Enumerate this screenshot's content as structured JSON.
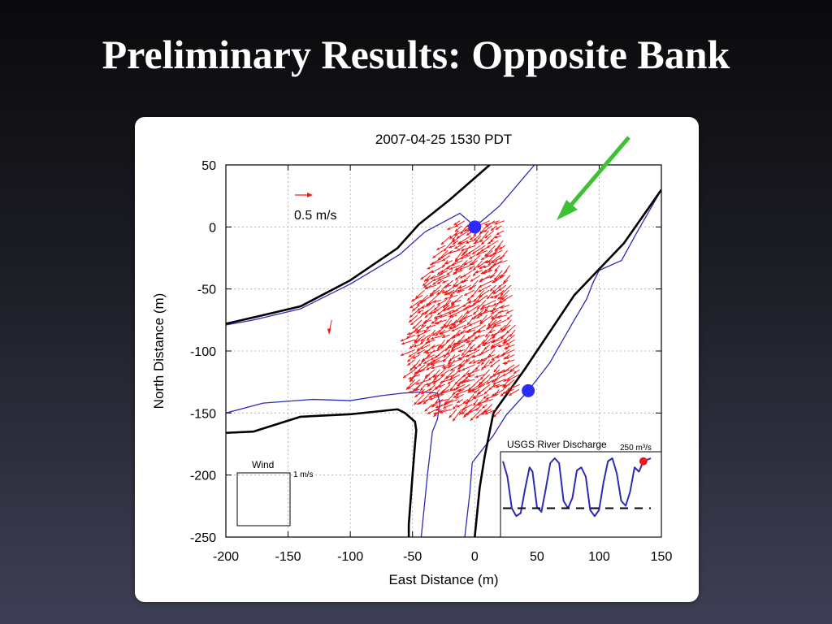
{
  "slide": {
    "title": "Preliminary Results: Opposite Bank"
  },
  "colors": {
    "vectors": "#ee1c1c",
    "coast": "#2b2bb5",
    "banks": "#000000",
    "markers": "#2b2bff",
    "flow_arrow": "#3ec234",
    "current_point": "#e8191f"
  },
  "chart_data": {
    "type": "quiver",
    "title": "2007-04-25 1530 PDT",
    "xlabel": "East Distance (m)",
    "ylabel": "North Distance (m)",
    "xlim": [
      -200,
      150
    ],
    "ylim": [
      -250,
      50
    ],
    "xticks": [
      -200,
      -150,
      -100,
      -50,
      0,
      50,
      100,
      150
    ],
    "yticks": [
      50,
      0,
      -50,
      -100,
      -150,
      -200,
      -250
    ],
    "grid": true,
    "scale_label": "0.5 m/s",
    "wind_label": "Wind",
    "wind_scale_label": "1 m/s",
    "markers": [
      {
        "x": 0,
        "y": 0
      },
      {
        "x": 43,
        "y": -132
      }
    ],
    "outer_bank_left": [
      [
        -200,
        -78
      ],
      [
        -178,
        -73
      ],
      [
        -140,
        -64
      ],
      [
        -100,
        -43
      ],
      [
        -62,
        -17
      ],
      [
        -45,
        2
      ],
      [
        -20,
        22
      ],
      [
        12,
        50
      ]
    ],
    "outer_bank_right_upper": [
      [
        15,
        -150
      ],
      [
        40,
        -115
      ],
      [
        80,
        -55
      ],
      [
        120,
        -13
      ],
      [
        150,
        30
      ]
    ],
    "outer_bank_right_lower": [
      [
        15,
        -150
      ],
      [
        8,
        -185
      ],
      [
        4,
        -210
      ],
      [
        0,
        -250
      ]
    ],
    "outer_bank_bottom": [
      [
        -200,
        -166
      ],
      [
        -178,
        -165
      ],
      [
        -140,
        -153
      ],
      [
        -100,
        -151
      ],
      [
        -62,
        -147
      ],
      [
        -56,
        -150
      ],
      [
        -48,
        -157
      ],
      [
        -47,
        -164
      ],
      [
        -48,
        -175
      ],
      [
        -50,
        -200
      ],
      [
        -53,
        -240
      ],
      [
        -53,
        -250
      ]
    ],
    "waterline_left": [
      [
        -200,
        -79
      ],
      [
        -178,
        -75
      ],
      [
        -140,
        -66
      ],
      [
        -100,
        -46
      ],
      [
        -60,
        -22
      ],
      [
        -40,
        -4
      ],
      [
        -12,
        11
      ],
      [
        -5,
        5
      ],
      [
        -2,
        2
      ]
    ],
    "waterline_top": [
      [
        0,
        0
      ],
      [
        20,
        17
      ],
      [
        48,
        50
      ]
    ],
    "waterline_right": [
      [
        43,
        -132
      ],
      [
        60,
        -110
      ],
      [
        80,
        -75
      ],
      [
        90,
        -58
      ],
      [
        95,
        -45
      ],
      [
        100,
        -35
      ],
      [
        118,
        -27
      ],
      [
        130,
        -5
      ],
      [
        150,
        30
      ]
    ],
    "waterline_bottom": [
      [
        -200,
        -150
      ],
      [
        -170,
        -142
      ],
      [
        -130,
        -139
      ],
      [
        -100,
        -140
      ],
      [
        -75,
        -136
      ],
      [
        -58,
        -134
      ],
      [
        -42,
        -133
      ],
      [
        -30,
        -134
      ],
      [
        -28,
        -142
      ],
      [
        -30,
        -155
      ],
      [
        -34,
        -165
      ],
      [
        -38,
        -200
      ],
      [
        -43,
        -250
      ]
    ],
    "waterline_lower_right": [
      [
        43,
        -132
      ],
      [
        25,
        -152
      ],
      [
        15,
        -168
      ],
      [
        -2,
        -190
      ],
      [
        -4,
        -215
      ],
      [
        -8,
        -250
      ]
    ],
    "vector_field": {
      "region_x": [
        -50,
        38
      ],
      "region_y": [
        -150,
        5
      ],
      "grid_step": 4,
      "direction": "southwest",
      "max_speed_mps": 0.5
    },
    "inset": {
      "title": "USGS River Discharge",
      "max_label": "250 m³/s",
      "series": [
        {
          "t": 0,
          "q": 0.95
        },
        {
          "t": 3,
          "q": 0.7
        },
        {
          "t": 6,
          "q": 0.18
        },
        {
          "t": 9,
          "q": 0.05
        },
        {
          "t": 12,
          "q": 0.1
        },
        {
          "t": 15,
          "q": 0.5
        },
        {
          "t": 18,
          "q": 0.85
        },
        {
          "t": 20,
          "q": 0.78
        },
        {
          "t": 23,
          "q": 0.2
        },
        {
          "t": 26,
          "q": 0.12
        },
        {
          "t": 29,
          "q": 0.5
        },
        {
          "t": 32,
          "q": 0.92
        },
        {
          "t": 35,
          "q": 1.0
        },
        {
          "t": 38,
          "q": 0.92
        },
        {
          "t": 41,
          "q": 0.3
        },
        {
          "t": 44,
          "q": 0.18
        },
        {
          "t": 47,
          "q": 0.35
        },
        {
          "t": 50,
          "q": 0.8
        },
        {
          "t": 53,
          "q": 0.85
        },
        {
          "t": 56,
          "q": 0.7
        },
        {
          "t": 59,
          "q": 0.15
        },
        {
          "t": 62,
          "q": 0.05
        },
        {
          "t": 65,
          "q": 0.15
        },
        {
          "t": 68,
          "q": 0.6
        },
        {
          "t": 71,
          "q": 0.95
        },
        {
          "t": 74,
          "q": 1.0
        },
        {
          "t": 77,
          "q": 0.75
        },
        {
          "t": 80,
          "q": 0.3
        },
        {
          "t": 83,
          "q": 0.22
        },
        {
          "t": 86,
          "q": 0.45
        },
        {
          "t": 89,
          "q": 0.85
        },
        {
          "t": 92,
          "q": 0.78
        },
        {
          "t": 95,
          "q": 0.95
        },
        {
          "t": 100,
          "q": 1.0
        }
      ],
      "reference_level": 0.18,
      "current_t": 95
    }
  }
}
